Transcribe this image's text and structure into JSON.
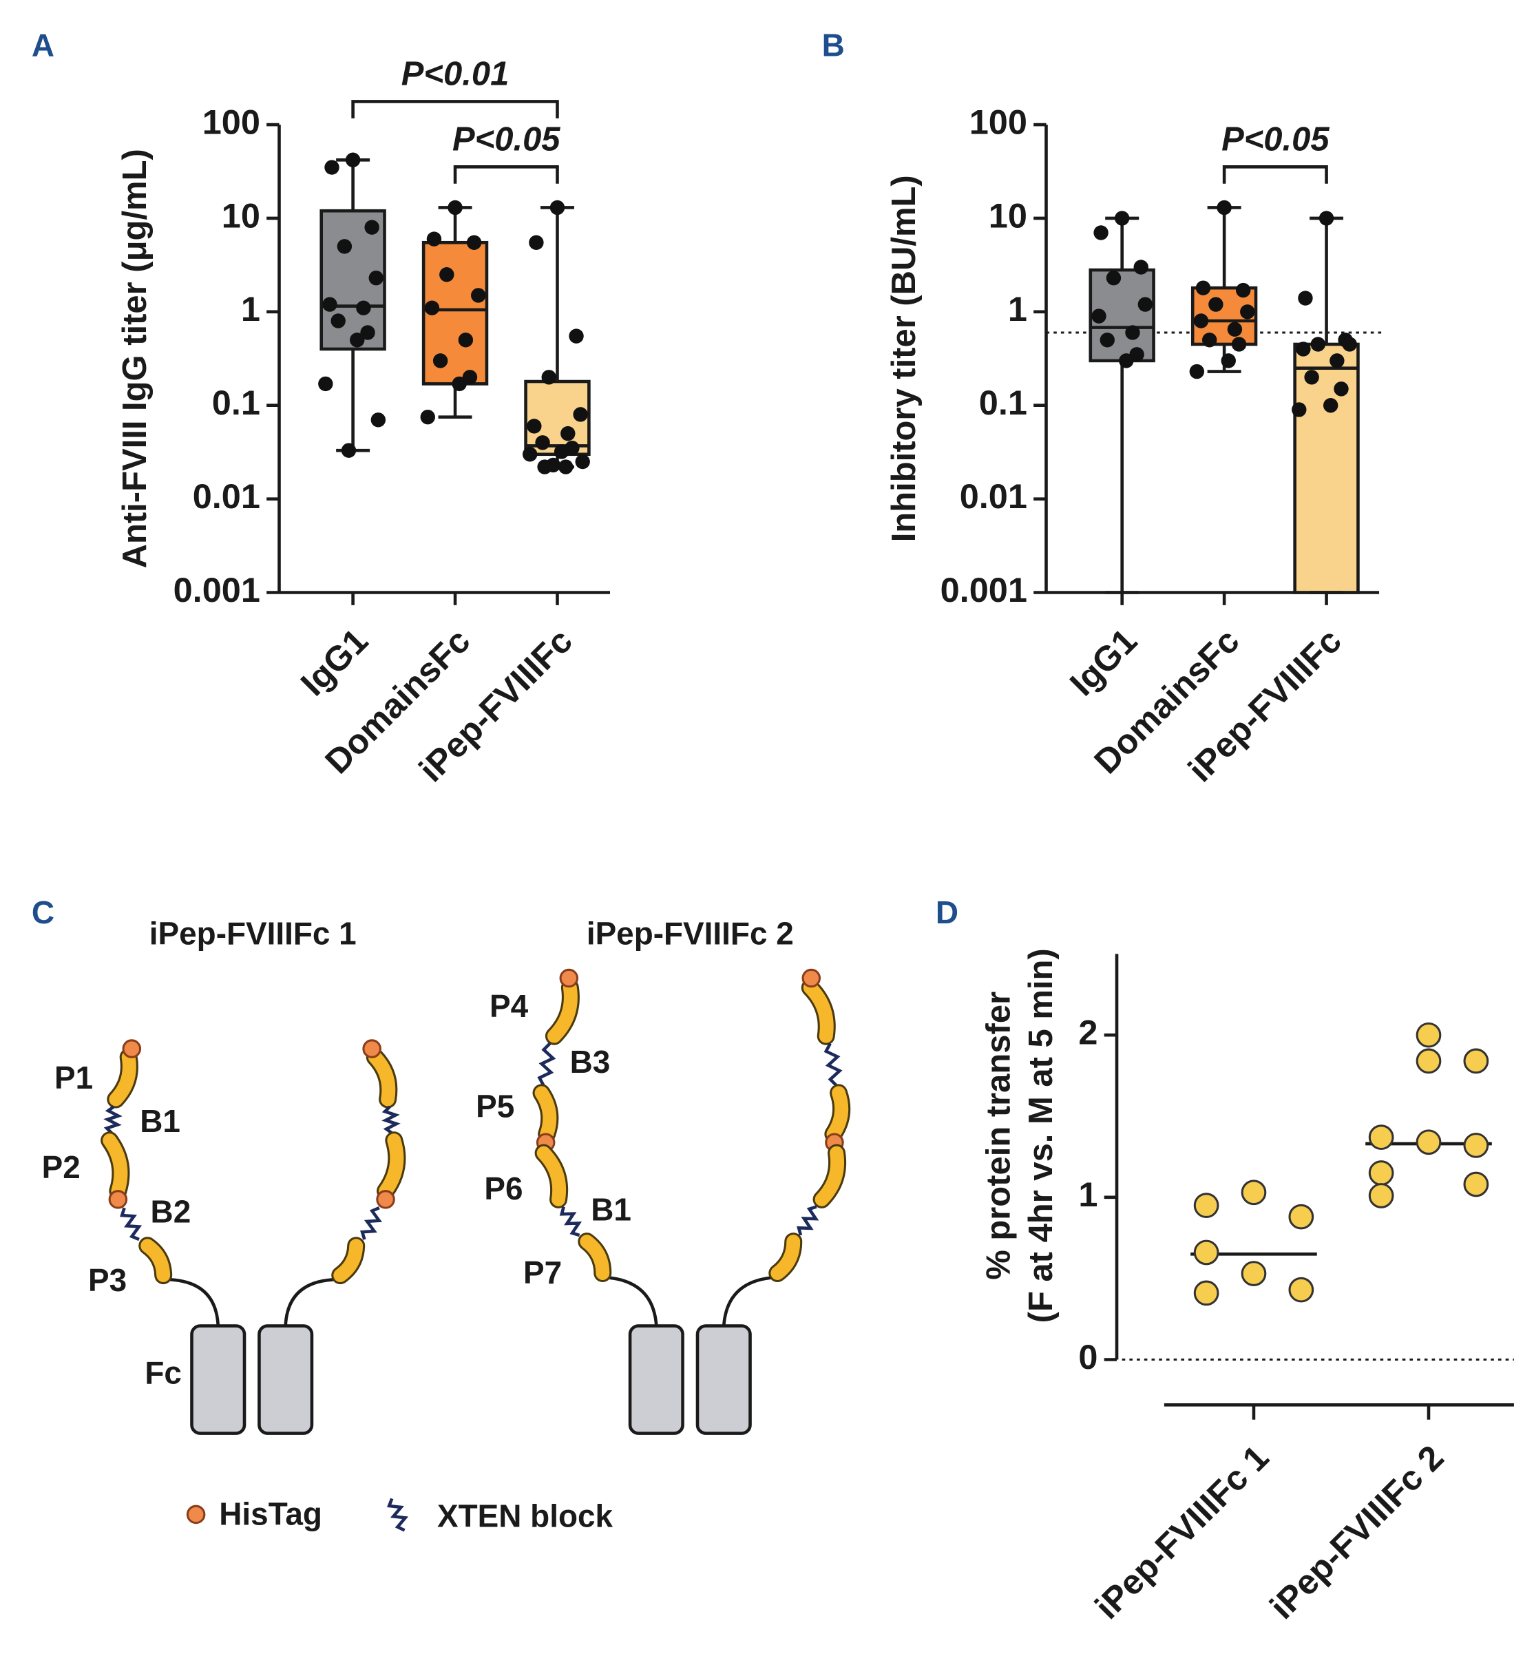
{
  "chart_data": [
    {
      "type": "box",
      "panel": "A",
      "y_label": "Anti-FVIII IgG titer (μg/mL)",
      "log_scale": true,
      "ylim": [
        0.001,
        100
      ],
      "yticks": [
        0.001,
        0.01,
        0.1,
        1,
        10,
        100
      ],
      "categories": [
        "IgG1",
        "DomainsFc",
        "iPep-FVIIIFc"
      ],
      "boxes": [
        {
          "color": "#8b8c90",
          "min": 0.033,
          "q1": 0.4,
          "median": 1.15,
          "q3": 12,
          "max": 42,
          "points": [
            42,
            35,
            8,
            5,
            2.3,
            1.2,
            1.1,
            0.8,
            0.6,
            0.5,
            0.17,
            0.07,
            0.033
          ]
        },
        {
          "color": "#f58b3a",
          "min": 0.075,
          "q1": 0.17,
          "median": 1.05,
          "q3": 5.5,
          "max": 13,
          "points": [
            13,
            6,
            5.5,
            2.5,
            1.5,
            1.1,
            0.5,
            0.3,
            0.2,
            0.17,
            0.075
          ]
        },
        {
          "color": "#f9d38c",
          "min": 0.022,
          "q1": 0.03,
          "median": 0.037,
          "q3": 0.18,
          "max": 13,
          "points": [
            13,
            5.5,
            0.55,
            0.2,
            0.08,
            0.06,
            0.05,
            0.04,
            0.035,
            0.032,
            0.03,
            0.025,
            0.023,
            0.022,
            0.022
          ]
        }
      ],
      "comparisons": [
        {
          "between": [
            "IgG1",
            "iPep-FVIIIFc"
          ],
          "label": "P<0.01"
        },
        {
          "between": [
            "DomainsFc",
            "iPep-FVIIIFc"
          ],
          "label": "P<0.05"
        }
      ]
    },
    {
      "type": "box",
      "panel": "B",
      "y_label": "Inhibitory titer (BU/mL)",
      "log_scale": true,
      "ylim": [
        0.001,
        100
      ],
      "yticks": [
        0.001,
        0.01,
        0.1,
        1,
        10,
        100
      ],
      "reference_line": 0.6,
      "categories": [
        "IgG1",
        "DomainsFc",
        "iPep-FVIIIFc"
      ],
      "boxes": [
        {
          "color": "#8b8c90",
          "min": 0.001,
          "q1": 0.3,
          "median": 0.68,
          "q3": 2.8,
          "max": 10,
          "points": [
            10,
            7,
            3,
            2.3,
            1.2,
            0.9,
            0.6,
            0.5,
            0.35,
            0.3
          ]
        },
        {
          "color": "#f58b3a",
          "min": 0.23,
          "q1": 0.45,
          "median": 0.8,
          "q3": 1.8,
          "max": 13,
          "points": [
            13,
            1.8,
            1.7,
            1.2,
            1.0,
            0.8,
            0.65,
            0.5,
            0.45,
            0.3,
            0.23
          ]
        },
        {
          "color": "#f9d38c",
          "min": 0.001,
          "q1": 0.001,
          "median": 0.25,
          "q3": 0.45,
          "max": 10,
          "points": [
            10,
            1.4,
            0.5,
            0.45,
            0.45,
            0.4,
            0.3,
            0.2,
            0.15,
            0.1,
            0.09
          ]
        }
      ],
      "comparisons": [
        {
          "between": [
            "DomainsFc",
            "iPep-FVIIIFc"
          ],
          "label": "P<0.05"
        }
      ]
    },
    {
      "type": "strip",
      "panel": "D",
      "y_label": [
        "% protein transfer",
        "(F at 4hr vs. M at 5 min)"
      ],
      "ylim": [
        0,
        2.5
      ],
      "yticks": [
        0,
        1,
        2
      ],
      "reference_line": 0,
      "color": "#f7cd4f",
      "categories": [
        "iPep-FVIIIFc 1",
        "iPep-FVIIIFc 2"
      ],
      "medians": [
        0.65,
        1.33
      ],
      "values": [
        [
          0.66,
          1.03,
          0.88,
          0.41,
          0.53,
          0.43,
          0.95
        ],
        [
          1.37,
          2.0,
          1.32,
          1.15,
          1.84,
          1.08,
          1.01,
          1.34,
          1.84
        ]
      ]
    }
  ],
  "diagram": {
    "panel": "C",
    "titles": [
      "iPep-FVIIIFc 1",
      "iPep-FVIIIFc 2"
    ],
    "labels": [
      "P1",
      "B1",
      "P2",
      "B2",
      "P3",
      "Fc",
      "P4",
      "B3",
      "P5",
      "P6",
      "B1",
      "P7"
    ],
    "legend": [
      "HisTag",
      "XTEN block"
    ]
  }
}
